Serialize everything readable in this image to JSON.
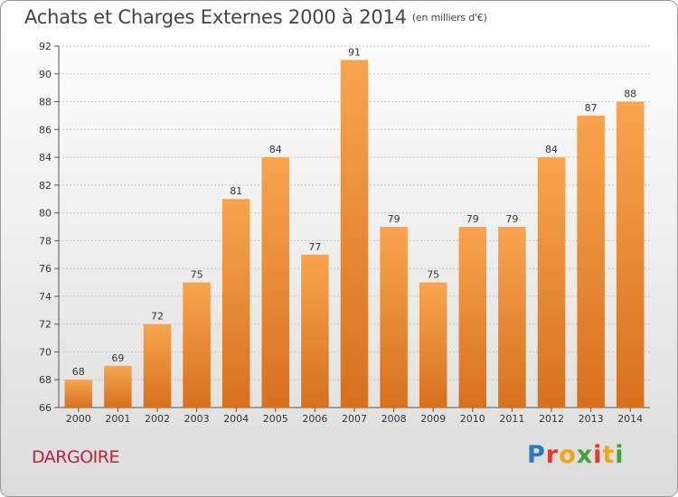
{
  "chart_data": {
    "type": "bar",
    "title": "Achats et Charges Externes 2000 à 2014",
    "unit": "(en milliers d'€)",
    "categories": [
      "2000",
      "2001",
      "2002",
      "2003",
      "2004",
      "2005",
      "2006",
      "2007",
      "2008",
      "2009",
      "2010",
      "2011",
      "2012",
      "2013",
      "2014"
    ],
    "values": [
      68,
      69,
      72,
      75,
      81,
      84,
      77,
      91,
      79,
      75,
      79,
      79,
      84,
      87,
      88
    ],
    "ylim": [
      66,
      92
    ],
    "yticks": [
      66,
      68,
      70,
      72,
      74,
      76,
      78,
      80,
      82,
      84,
      86,
      88,
      90,
      92
    ],
    "grid": true,
    "bar_color_top": "#f8a54e",
    "bar_color_bottom": "#d8701d"
  },
  "place_name": "DARGOIRE",
  "logo": {
    "text": "Proxiti",
    "letters": [
      {
        "ch": "P",
        "color": "#2b78c5"
      },
      {
        "ch": "r",
        "color": "#e23a2b"
      },
      {
        "ch": "o",
        "color": "#f2a51a"
      },
      {
        "ch": "x",
        "color": "#3fa535"
      },
      {
        "ch": "i",
        "color": "#e23a2b"
      },
      {
        "ch": "t",
        "color": "#f2a51a"
      },
      {
        "ch": "i",
        "color": "#3fa535"
      }
    ]
  }
}
